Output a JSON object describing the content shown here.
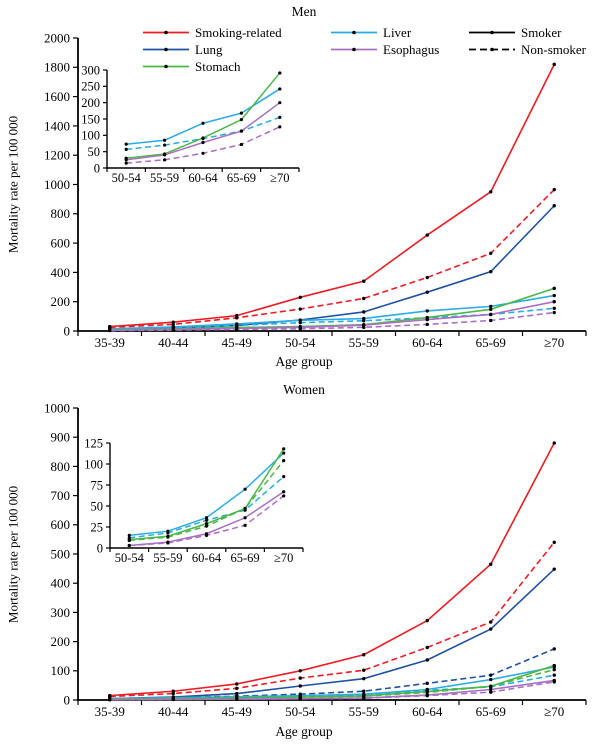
{
  "legend": {
    "columns": [
      [
        {
          "label": "Smoking-related",
          "color": "#EC1C24",
          "dash": false
        },
        {
          "label": "Lung",
          "color": "#2052A2",
          "dash": false
        },
        {
          "label": "Stomach",
          "color": "#4CB748",
          "dash": false
        }
      ],
      [
        {
          "label": "Liver",
          "color": "#2AACE3",
          "dash": false
        },
        {
          "label": "Esophagus",
          "color": "#A96FC2",
          "dash": false
        }
      ],
      [
        {
          "label": "Smoker",
          "color": "#000000",
          "dash": false
        },
        {
          "label": "Non-smoker",
          "color": "#000000",
          "dash": true
        }
      ]
    ]
  },
  "chart_data": [
    {
      "id": "men-main",
      "type": "line",
      "title": "Men",
      "xlabel": "Age group",
      "ylabel": "Mortality rate per 100 000",
      "categories": [
        "35-39",
        "40-44",
        "45-49",
        "50-54",
        "55-59",
        "60-64",
        "65-69",
        "≥70"
      ],
      "ylim": [
        0,
        2000
      ],
      "ytick": 200,
      "grid": false,
      "legend_position": "top",
      "series": [
        {
          "name": "Smoking-related smoker",
          "color": "#EC1C24",
          "dash": false,
          "values": [
            30,
            60,
            105,
            230,
            340,
            655,
            950,
            1820
          ]
        },
        {
          "name": "Smoking-related non-smoker",
          "color": "#EC1C24",
          "dash": true,
          "values": [
            25,
            45,
            90,
            150,
            222,
            365,
            530,
            965
          ]
        },
        {
          "name": "Lung smoker",
          "color": "#2052A2",
          "dash": false,
          "values": [
            8,
            20,
            38,
            75,
            130,
            265,
            405,
            855
          ]
        },
        {
          "name": "Liver smoker",
          "color": "#2AACE3",
          "dash": false,
          "values": [
            15,
            28,
            48,
            73,
            85,
            137,
            168,
            242
          ]
        },
        {
          "name": "Liver non-smoker",
          "color": "#2AACE3",
          "dash": true,
          "values": [
            12,
            22,
            38,
            57,
            70,
            90,
            113,
            155
          ]
        },
        {
          "name": "Stomach smoker",
          "color": "#4CB748",
          "dash": false,
          "values": [
            8,
            14,
            24,
            30,
            43,
            92,
            148,
            291
          ]
        },
        {
          "name": "Esophagus smoker",
          "color": "#A96FC2",
          "dash": false,
          "values": [
            5,
            10,
            17,
            25,
            40,
            78,
            113,
            200
          ]
        },
        {
          "name": "Esophagus non-smoker",
          "color": "#A96FC2",
          "dash": true,
          "values": [
            3,
            6,
            11,
            15,
            25,
            45,
            72,
            126
          ]
        }
      ]
    },
    {
      "id": "men-inset",
      "type": "line",
      "title": "",
      "categories": [
        "50-54",
        "55-59",
        "60-64",
        "65-69",
        "≥70"
      ],
      "ylim": [
        0,
        300
      ],
      "ytick": 50,
      "grid": false,
      "series": [
        {
          "name": "Liver smoker",
          "color": "#2AACE3",
          "dash": false,
          "values": [
            73,
            85,
            137,
            168,
            242
          ]
        },
        {
          "name": "Liver non-smoker",
          "color": "#2AACE3",
          "dash": true,
          "values": [
            57,
            70,
            90,
            113,
            155
          ]
        },
        {
          "name": "Stomach smoker",
          "color": "#4CB748",
          "dash": false,
          "values": [
            30,
            43,
            92,
            148,
            291
          ]
        },
        {
          "name": "Esophagus smoker",
          "color": "#A96FC2",
          "dash": false,
          "values": [
            25,
            40,
            78,
            113,
            200
          ]
        },
        {
          "name": "Esophagus non-smoker",
          "color": "#A96FC2",
          "dash": true,
          "values": [
            15,
            25,
            45,
            72,
            126
          ]
        }
      ]
    },
    {
      "id": "women-main",
      "type": "line",
      "title": "Women",
      "xlabel": "Age group",
      "ylabel": "Mortality rate per 100 000",
      "categories": [
        "35-39",
        "40-44",
        "45-49",
        "50-54",
        "55-59",
        "60-64",
        "65-69",
        "≥70"
      ],
      "ylim": [
        0,
        1000
      ],
      "ytick": 100,
      "grid": false,
      "series": [
        {
          "name": "Smoking-related smoker",
          "color": "#EC1C24",
          "dash": false,
          "values": [
            15,
            30,
            55,
            100,
            155,
            272,
            465,
            880
          ]
        },
        {
          "name": "Smoking-related non-smoker",
          "color": "#EC1C24",
          "dash": true,
          "values": [
            12,
            22,
            40,
            75,
            102,
            180,
            267,
            540
          ]
        },
        {
          "name": "Lung smoker",
          "color": "#2052A2",
          "dash": false,
          "values": [
            5,
            10,
            22,
            48,
            73,
            137,
            243,
            448
          ]
        },
        {
          "name": "Lung non-smoker",
          "color": "#2052A2",
          "dash": true,
          "values": [
            4,
            8,
            13,
            20,
            30,
            57,
            85,
            175
          ]
        },
        {
          "name": "Liver smoker",
          "color": "#2AACE3",
          "dash": false,
          "values": [
            5,
            8,
            11,
            15,
            20,
            36,
            70,
            113
          ]
        },
        {
          "name": "Liver non-smoker",
          "color": "#2AACE3",
          "dash": true,
          "values": [
            4,
            6,
            9,
            12,
            18,
            33,
            45,
            85
          ]
        },
        {
          "name": "Stomach smoker",
          "color": "#4CB748",
          "dash": false,
          "values": [
            3,
            5,
            8,
            10,
            14,
            29,
            47,
            118
          ]
        },
        {
          "name": "Stomach non-smoker",
          "color": "#4CB748",
          "dash": true,
          "values": [
            3,
            5,
            7,
            9,
            13,
            26,
            47,
            104
          ]
        },
        {
          "name": "Esophagus smoker",
          "color": "#A96FC2",
          "dash": false,
          "values": [
            1,
            2,
            3,
            4,
            7,
            17,
            36,
            67
          ]
        },
        {
          "name": "Esophagus non-smoker",
          "color": "#A96FC2",
          "dash": true,
          "values": [
            1,
            2,
            3,
            4,
            6,
            15,
            27,
            62
          ]
        }
      ]
    },
    {
      "id": "women-inset",
      "type": "line",
      "title": "",
      "categories": [
        "50-54",
        "55-59",
        "60-64",
        "65-69",
        "≥70"
      ],
      "ylim": [
        0,
        125
      ],
      "ytick": 25,
      "grid": false,
      "series": [
        {
          "name": "Liver smoker",
          "color": "#2AACE3",
          "dash": false,
          "values": [
            15,
            20,
            36,
            70,
            113
          ]
        },
        {
          "name": "Liver non-smoker",
          "color": "#2AACE3",
          "dash": true,
          "values": [
            12,
            18,
            33,
            45,
            85
          ]
        },
        {
          "name": "Stomach smoker",
          "color": "#4CB748",
          "dash": false,
          "values": [
            10,
            14,
            29,
            47,
            118
          ]
        },
        {
          "name": "Stomach non-smoker",
          "color": "#4CB748",
          "dash": true,
          "values": [
            9,
            13,
            26,
            47,
            104
          ]
        },
        {
          "name": "Esophagus smoker",
          "color": "#A96FC2",
          "dash": false,
          "values": [
            3,
            7,
            17,
            36,
            67
          ]
        },
        {
          "name": "Esophagus non-smoker",
          "color": "#A96FC2",
          "dash": true,
          "values": [
            3,
            6,
            15,
            27,
            62
          ]
        }
      ]
    }
  ]
}
